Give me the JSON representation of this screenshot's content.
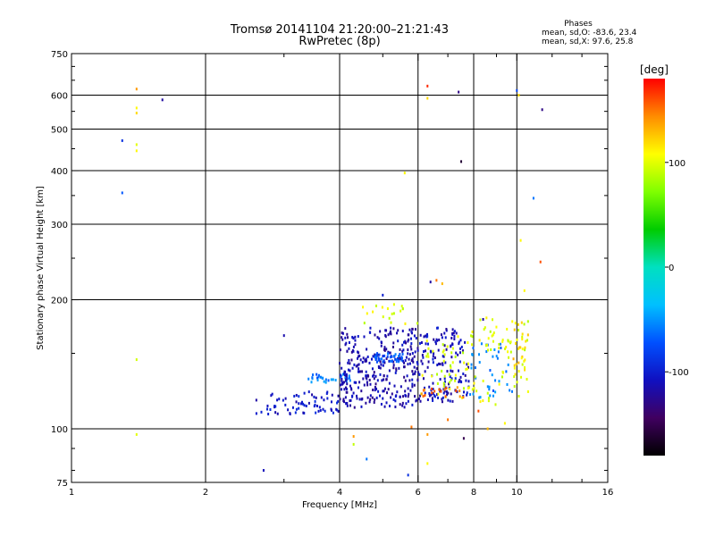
{
  "chart_data": {
    "type": "scatter",
    "title": "Tromsø 20141104 21:20:00–21:21:43",
    "subtitle": "RwPretec (8p)",
    "xlabel": "Frequency [MHz]",
    "ylabel": "Stationary phase Virtual Height [km]",
    "xscale": "log",
    "yscale": "log",
    "xlim": [
      1,
      16
    ],
    "ylim": [
      75,
      750
    ],
    "x_ticks": [
      1,
      2,
      4,
      6,
      8,
      10,
      16
    ],
    "x_minor_ticks": [
      3,
      5,
      7,
      9,
      12,
      14
    ],
    "y_ticks": [
      75,
      100,
      200,
      300,
      400,
      500,
      600,
      750
    ],
    "y_minor_ticks": [
      80,
      90,
      150,
      250,
      350,
      450,
      550,
      650,
      700
    ],
    "grid": true,
    "stats": {
      "header": "Phases",
      "o_label": "mean, sd,O:",
      "o_values": "-83.6, 23.4",
      "x_label": "mean, sd,X:",
      "x_values": "97.6, 25.8"
    },
    "colorbar": {
      "label": "[deg]",
      "range": [
        -180,
        180
      ],
      "ticks": [
        100,
        0,
        -100
      ],
      "colors": [
        "#ff0000",
        "#ff8c00",
        "#ffff00",
        "#80ff00",
        "#00cc00",
        "#00e0c0",
        "#00c0ff",
        "#0050ff",
        "#1010c0",
        "#400060",
        "#000000"
      ]
    },
    "points": [
      {
        "x": 1.3,
        "y": 470,
        "phase": -90
      },
      {
        "x": 1.3,
        "y": 355,
        "phase": -70
      },
      {
        "x": 1.4,
        "y": 620,
        "phase": 140
      },
      {
        "x": 1.4,
        "y": 560,
        "phase": 110
      },
      {
        "x": 1.4,
        "y": 545,
        "phase": 120
      },
      {
        "x": 1.4,
        "y": 460,
        "phase": 100
      },
      {
        "x": 1.4,
        "y": 445,
        "phase": 110
      },
      {
        "x": 1.4,
        "y": 145,
        "phase": 95
      },
      {
        "x": 1.4,
        "y": 97,
        "phase": 100
      },
      {
        "x": 1.6,
        "y": 585,
        "phase": -120
      },
      {
        "x": 2.7,
        "y": 80,
        "phase": -110
      },
      {
        "x": 3.0,
        "y": 165,
        "phase": -115
      },
      {
        "x": 4.3,
        "y": 92,
        "phase": 90
      },
      {
        "x": 4.3,
        "y": 96,
        "phase": 140
      },
      {
        "x": 4.6,
        "y": 85,
        "phase": -60
      },
      {
        "x": 5.0,
        "y": 205,
        "phase": -100
      },
      {
        "x": 5.3,
        "y": 195,
        "phase": 100
      },
      {
        "x": 5.6,
        "y": 395,
        "phase": 110
      },
      {
        "x": 5.7,
        "y": 78,
        "phase": -90
      },
      {
        "x": 5.8,
        "y": 101,
        "phase": 150
      },
      {
        "x": 6.3,
        "y": 630,
        "phase": 170
      },
      {
        "x": 6.3,
        "y": 590,
        "phase": 120
      },
      {
        "x": 6.3,
        "y": 97,
        "phase": 140
      },
      {
        "x": 6.3,
        "y": 83,
        "phase": 110
      },
      {
        "x": 6.4,
        "y": 220,
        "phase": -120
      },
      {
        "x": 6.6,
        "y": 222,
        "phase": 150
      },
      {
        "x": 6.8,
        "y": 218,
        "phase": 130
      },
      {
        "x": 7.0,
        "y": 105,
        "phase": 150
      },
      {
        "x": 7.4,
        "y": 610,
        "phase": -130
      },
      {
        "x": 7.5,
        "y": 420,
        "phase": -160
      },
      {
        "x": 7.6,
        "y": 95,
        "phase": -150
      },
      {
        "x": 8.2,
        "y": 110,
        "phase": 160
      },
      {
        "x": 8.4,
        "y": 180,
        "phase": -120
      },
      {
        "x": 8.6,
        "y": 100,
        "phase": 130
      },
      {
        "x": 9.4,
        "y": 103,
        "phase": 110
      },
      {
        "x": 10.0,
        "y": 615,
        "phase": -80
      },
      {
        "x": 10.1,
        "y": 600,
        "phase": 120
      },
      {
        "x": 10.2,
        "y": 275,
        "phase": 110
      },
      {
        "x": 10.4,
        "y": 210,
        "phase": 110
      },
      {
        "x": 10.9,
        "y": 345,
        "phase": -60
      },
      {
        "x": 11.3,
        "y": 245,
        "phase": 160
      },
      {
        "x": 11.4,
        "y": 555,
        "phase": -130
      }
    ],
    "point_clusters": [
      {
        "x_range": [
          2.6,
          4.0
        ],
        "y_range": [
          108,
          122
        ],
        "phase": -105,
        "count": 70
      },
      {
        "x_range": [
          3.4,
          4.3
        ],
        "y_range": [
          128,
          134
        ],
        "phase": -60,
        "count": 30
      },
      {
        "x_range": [
          4.0,
          6.0
        ],
        "y_range": [
          112,
          172
        ],
        "phase": -115,
        "count": 330
      },
      {
        "x_range": [
          4.8,
          5.6
        ],
        "y_range": [
          143,
          150
        ],
        "phase": -70,
        "count": 35
      },
      {
        "x_range": [
          4.5,
          6.0
        ],
        "y_range": [
          175,
          195
        ],
        "phase": 100,
        "count": 18
      },
      {
        "x_range": [
          6.0,
          7.8
        ],
        "y_range": [
          115,
          172
        ],
        "phase": -110,
        "count": 150
      },
      {
        "x_range": [
          6.0,
          7.8
        ],
        "y_range": [
          118,
          170
        ],
        "phase": 95,
        "count": 45
      },
      {
        "x_range": [
          6.0,
          7.6
        ],
        "y_range": [
          118,
          126
        ],
        "phase": 150,
        "count": 18
      },
      {
        "x_range": [
          7.8,
          9.8
        ],
        "y_range": [
          118,
          158
        ],
        "phase": -60,
        "count": 40
      },
      {
        "x_range": [
          7.8,
          10.6
        ],
        "y_range": [
          112,
          182
        ],
        "phase": 100,
        "count": 70
      },
      {
        "x_range": [
          9.8,
          10.6
        ],
        "y_range": [
          128,
          180
        ],
        "phase": 120,
        "count": 25
      }
    ]
  }
}
